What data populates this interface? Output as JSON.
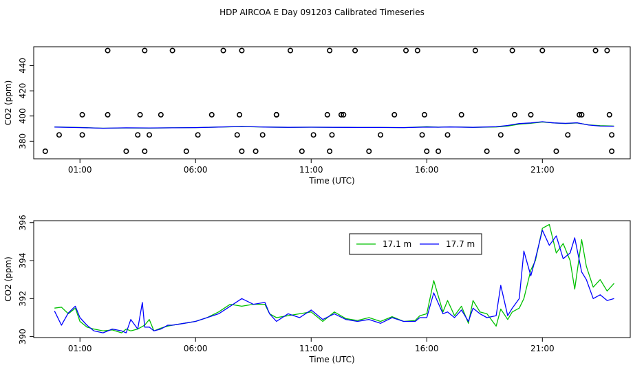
{
  "title": "HDP AIRCOA E  Day 091203  Calibrated Timeseries",
  "colors": {
    "green": "#00c000",
    "blue": "#0000ff",
    "axis": "#000000",
    "markers": "#000000"
  },
  "chart_data": [
    {
      "type": "line",
      "panel": "top",
      "xlabel": "Time (UTC)",
      "ylabel": "CO2 (ppm)",
      "xlim": [
        -1.0,
        24.8
      ],
      "ylim": [
        366,
        455
      ],
      "x_ticks": [
        1,
        6,
        11,
        16,
        21
      ],
      "x_tick_labels": [
        "01:00",
        "06:00",
        "11:00",
        "16:00",
        "21:00"
      ],
      "y_ticks": [
        380,
        400,
        420,
        440
      ],
      "grid": false,
      "series": [
        {
          "color": "green",
          "style": "line",
          "x": [
            -0.1,
            1.0,
            2.0,
            3.0,
            4.0,
            5.0,
            6.0,
            7.0,
            8.0,
            9.0,
            10.0,
            11.0,
            12.0,
            13.0,
            14.0,
            15.0,
            16.0,
            16.5,
            17.0,
            18.0,
            19.0,
            19.5,
            20.0,
            20.5,
            21.0,
            21.5,
            22.0,
            22.5,
            23.0,
            23.5,
            24.1
          ],
          "y": [
            391.3,
            390.9,
            390.3,
            390.5,
            390.4,
            390.6,
            390.8,
            391.2,
            391.6,
            391.2,
            391.0,
            391.1,
            391.0,
            390.9,
            390.9,
            390.8,
            391.5,
            391.1,
            391.4,
            391.0,
            391.3,
            392.0,
            393.5,
            394.2,
            395.2,
            394.5,
            394.0,
            394.5,
            393.0,
            392.3,
            392.0
          ]
        },
        {
          "color": "blue",
          "style": "line",
          "x": [
            -0.1,
            1.0,
            2.0,
            3.0,
            4.0,
            5.0,
            6.0,
            7.0,
            8.0,
            9.0,
            10.0,
            11.0,
            12.0,
            13.0,
            14.0,
            15.0,
            16.0,
            16.5,
            17.0,
            18.0,
            19.0,
            19.5,
            20.0,
            20.5,
            21.0,
            21.5,
            22.0,
            22.5,
            23.0,
            23.5,
            24.1
          ],
          "y": [
            391.2,
            390.8,
            390.3,
            390.6,
            390.5,
            390.6,
            390.8,
            391.2,
            391.7,
            391.2,
            391.0,
            391.1,
            391.0,
            390.9,
            390.9,
            390.8,
            391.2,
            391.1,
            391.3,
            391.0,
            391.5,
            392.5,
            394.0,
            394.5,
            395.5,
            394.5,
            394.2,
            394.6,
            392.8,
            392.0,
            391.9
          ]
        },
        {
          "color": "markers",
          "style": "points",
          "x": [
            -0.5,
            0.1,
            1.1,
            1.1,
            2.2,
            2.2,
            3.0,
            3.5,
            3.6,
            3.8,
            3.8,
            4.0,
            4.5,
            5.0,
            5.6,
            6.1,
            6.7,
            7.2,
            7.8,
            7.9,
            8.0,
            8.0,
            8.6,
            8.9,
            9.5,
            9.5,
            10.1,
            10.6,
            11.1,
            11.7,
            11.8,
            11.8,
            11.9,
            12.3,
            12.4,
            12.9,
            13.5,
            14.0,
            14.6,
            15.1,
            15.6,
            15.8,
            15.9,
            16.0,
            16.5,
            16.9,
            17.5,
            18.1,
            18.6,
            19.2,
            19.7,
            19.8,
            19.9,
            20.5,
            21.0,
            21.6,
            22.1,
            22.6,
            22.7,
            23.3,
            23.8,
            23.9,
            24.0,
            24.0
          ],
          "y": [
            372,
            385,
            401,
            385,
            452,
            401,
            372,
            385,
            401,
            452,
            372,
            385,
            401,
            452,
            372,
            385,
            401,
            452,
            385,
            401,
            452,
            372,
            372,
            385,
            401,
            401,
            452,
            372,
            385,
            401,
            372,
            452,
            385,
            401,
            401,
            452,
            372,
            385,
            401,
            452,
            452,
            385,
            401,
            372,
            372,
            385,
            401,
            452,
            372,
            385,
            452,
            401,
            372,
            401,
            452,
            372,
            385,
            401,
            401,
            452,
            452,
            401,
            385,
            372
          ]
        }
      ]
    },
    {
      "type": "line",
      "panel": "bottom",
      "xlabel": "Time (UTC)",
      "ylabel": "CO2 (ppm)",
      "xlim": [
        -1.0,
        24.8
      ],
      "ylim": [
        389.95,
        396.1
      ],
      "x_ticks": [
        1,
        6,
        11,
        16,
        21
      ],
      "x_tick_labels": [
        "01:00",
        "06:00",
        "11:00",
        "16:00",
        "21:00"
      ],
      "y_ticks": [
        390,
        392,
        394,
        396
      ],
      "grid": false,
      "legend_position": "top-right",
      "series": [
        {
          "name": "17.1 m",
          "color": "green",
          "x": [
            -0.1,
            0.2,
            0.5,
            0.8,
            1.0,
            1.3,
            1.6,
            2.0,
            2.4,
            2.8,
            3.0,
            3.2,
            3.5,
            3.8,
            4.0,
            4.2,
            4.5,
            4.8,
            5.0,
            5.5,
            6.0,
            6.5,
            7.0,
            7.5,
            8.0,
            8.5,
            9.0,
            9.2,
            9.5,
            10.0,
            10.5,
            11.0,
            11.5,
            12.0,
            12.5,
            13.0,
            13.5,
            14.0,
            14.5,
            15.0,
            15.5,
            15.7,
            16.0,
            16.3,
            16.7,
            16.9,
            17.2,
            17.5,
            17.8,
            18.0,
            18.3,
            18.6,
            19.0,
            19.2,
            19.5,
            19.7,
            20.0,
            20.2,
            20.5,
            20.7,
            21.0,
            21.3,
            21.6,
            21.9,
            22.2,
            22.4,
            22.7,
            22.9,
            23.2,
            23.5,
            23.8,
            24.1
          ],
          "y": [
            391.5,
            391.55,
            391.2,
            391.5,
            390.8,
            390.5,
            390.4,
            390.3,
            390.35,
            390.2,
            390.4,
            390.3,
            390.4,
            390.6,
            390.9,
            390.3,
            390.45,
            390.55,
            390.6,
            390.7,
            390.8,
            391.0,
            391.3,
            391.7,
            391.6,
            391.7,
            391.7,
            391.2,
            391.0,
            391.1,
            391.2,
            391.3,
            390.8,
            391.3,
            390.95,
            390.85,
            391.0,
            390.8,
            391.05,
            390.8,
            390.85,
            391.1,
            391.2,
            392.95,
            391.3,
            391.9,
            391.1,
            391.6,
            390.7,
            391.9,
            391.3,
            391.2,
            390.55,
            391.45,
            390.9,
            391.3,
            391.5,
            392.0,
            393.5,
            394.0,
            395.7,
            395.9,
            394.4,
            394.9,
            394.0,
            392.5,
            395.1,
            393.7,
            392.6,
            393.0,
            392.4,
            392.8
          ]
        },
        {
          "name": "17.7 m",
          "color": "blue",
          "x": [
            -0.1,
            0.2,
            0.5,
            0.8,
            1.0,
            1.3,
            1.6,
            2.0,
            2.4,
            2.8,
            3.0,
            3.2,
            3.5,
            3.7,
            3.8,
            4.0,
            4.2,
            4.5,
            4.8,
            5.0,
            5.5,
            6.0,
            6.5,
            7.0,
            7.5,
            8.0,
            8.5,
            9.0,
            9.2,
            9.5,
            10.0,
            10.5,
            11.0,
            11.5,
            12.0,
            12.5,
            13.0,
            13.5,
            14.0,
            14.5,
            15.0,
            15.5,
            15.7,
            16.0,
            16.3,
            16.7,
            16.9,
            17.2,
            17.5,
            17.8,
            18.0,
            18.3,
            18.6,
            19.0,
            19.2,
            19.5,
            19.7,
            20.0,
            20.2,
            20.5,
            20.7,
            21.0,
            21.3,
            21.6,
            21.9,
            22.2,
            22.4,
            22.7,
            22.9,
            23.2,
            23.5,
            23.8,
            24.1
          ],
          "y": [
            391.35,
            390.6,
            391.25,
            391.6,
            391.0,
            390.6,
            390.3,
            390.2,
            390.4,
            390.3,
            390.2,
            390.9,
            390.4,
            391.8,
            390.5,
            390.5,
            390.3,
            390.4,
            390.6,
            390.6,
            390.7,
            390.8,
            391.0,
            391.2,
            391.6,
            392.0,
            391.7,
            391.8,
            391.2,
            390.8,
            391.2,
            391.0,
            391.4,
            390.9,
            391.2,
            390.9,
            390.8,
            390.9,
            390.7,
            391.0,
            390.8,
            390.8,
            391.0,
            391.0,
            392.3,
            391.2,
            391.3,
            391.0,
            391.4,
            390.8,
            391.5,
            391.2,
            391.0,
            391.1,
            392.7,
            391.1,
            391.5,
            392.0,
            394.5,
            393.2,
            394.1,
            395.6,
            394.8,
            395.3,
            394.1,
            394.4,
            395.2,
            393.4,
            393.0,
            392.0,
            392.2,
            391.9,
            392.0
          ]
        }
      ]
    }
  ]
}
